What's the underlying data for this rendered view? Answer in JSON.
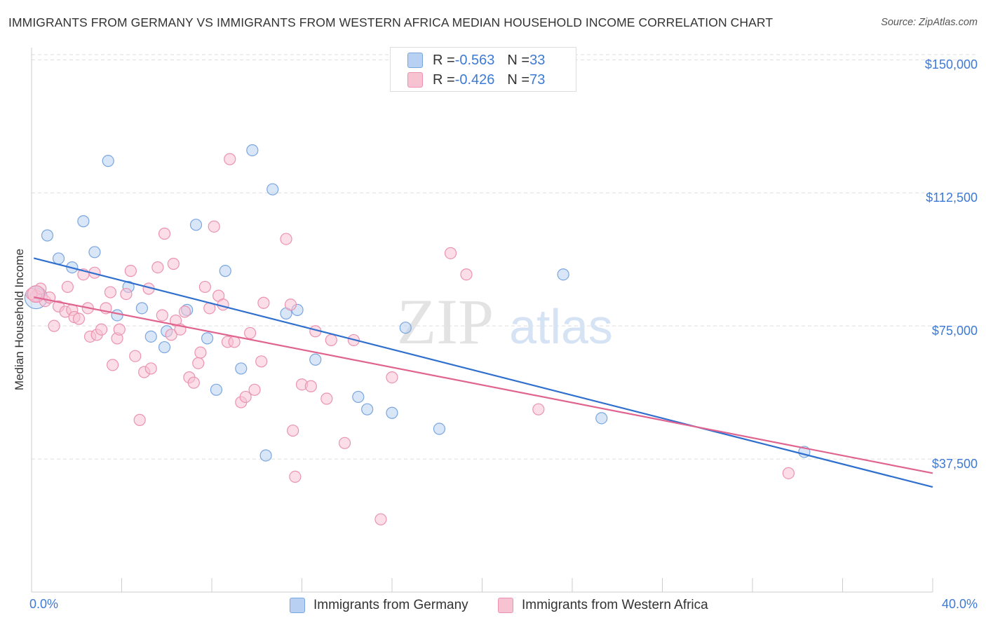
{
  "title": "IMMIGRANTS FROM GERMANY VS IMMIGRANTS FROM WESTERN AFRICA MEDIAN HOUSEHOLD INCOME CORRELATION CHART",
  "source": "Source: ZipAtlas.com",
  "watermark": {
    "zip": "ZIP",
    "atlas": "atlas"
  },
  "legend_stats": [
    {
      "r_label": "R = ",
      "r_value": "-0.563",
      "n_label": "N = ",
      "n_value": "33"
    },
    {
      "r_label": "R = ",
      "r_value": "-0.426",
      "n_label": "N = ",
      "n_value": "73"
    }
  ],
  "colors": {
    "germany_fill": "#b8d1f2",
    "germany_stroke": "#7aa6e0",
    "germany_line": "#2f6fce",
    "wafrica_fill": "#f7c3d3",
    "wafrica_stroke": "#eb93b0",
    "wafrica_line": "#e0648f",
    "tick_label": "#3d7ad6",
    "grid": "#dddddd"
  },
  "chart_data": {
    "type": "scatter",
    "title": "IMMIGRANTS FROM GERMANY VS IMMIGRANTS FROM WESTERN AFRICA MEDIAN HOUSEHOLD INCOME CORRELATION CHART",
    "xlabel": "",
    "ylabel": "Median Household Income",
    "xlim": [
      0,
      40
    ],
    "ylim": [
      0,
      155000
    ],
    "x_tick_labels": [
      "0.0%",
      "40.0%"
    ],
    "y_ticks": [
      37500,
      75000,
      112500,
      150000
    ],
    "y_tick_labels": [
      "$37,500",
      "$75,000",
      "$112,500",
      "$150,000"
    ],
    "grid": true,
    "legend_position": "bottom",
    "series": [
      {
        "name": "Immigrants from Germany",
        "r": -0.563,
        "n": 33,
        "trend": [
          [
            0.1,
            94100
          ],
          [
            40,
            29600
          ]
        ],
        "points": [
          [
            0.3,
            84000
          ],
          [
            0.7,
            100500
          ],
          [
            1.2,
            94000
          ],
          [
            1.8,
            91500
          ],
          [
            2.3,
            104500
          ],
          [
            2.8,
            95800
          ],
          [
            3.4,
            121500
          ],
          [
            3.8,
            78000
          ],
          [
            4.3,
            86000
          ],
          [
            4.9,
            80000
          ],
          [
            5.3,
            72000
          ],
          [
            5.9,
            69000
          ],
          [
            6.0,
            73500
          ],
          [
            6.9,
            79500
          ],
          [
            7.3,
            103500
          ],
          [
            7.8,
            71500
          ],
          [
            8.2,
            57000
          ],
          [
            8.6,
            90500
          ],
          [
            9.3,
            63000
          ],
          [
            9.8,
            124500
          ],
          [
            10.4,
            38500
          ],
          [
            10.7,
            113500
          ],
          [
            11.3,
            78500
          ],
          [
            11.8,
            79500
          ],
          [
            12.6,
            65500
          ],
          [
            14.5,
            55000
          ],
          [
            14.9,
            51500
          ],
          [
            16.0,
            50500
          ],
          [
            16.6,
            74500
          ],
          [
            18.1,
            46000
          ],
          [
            23.6,
            89500
          ],
          [
            25.3,
            49000
          ],
          [
            34.3,
            39500
          ]
        ]
      },
      {
        "name": "Immigrants from Western Africa",
        "r": -0.426,
        "n": 73,
        "trend": [
          [
            0.1,
            83100
          ],
          [
            40,
            33500
          ]
        ],
        "points": [
          [
            0.2,
            83500
          ],
          [
            0.4,
            85500
          ],
          [
            0.6,
            82000
          ],
          [
            0.8,
            83000
          ],
          [
            1.0,
            75000
          ],
          [
            1.2,
            80500
          ],
          [
            1.5,
            79000
          ],
          [
            1.6,
            86000
          ],
          [
            1.8,
            79500
          ],
          [
            1.9,
            77500
          ],
          [
            2.1,
            77000
          ],
          [
            2.3,
            89500
          ],
          [
            2.5,
            80000
          ],
          [
            2.6,
            72000
          ],
          [
            2.8,
            90000
          ],
          [
            2.9,
            72500
          ],
          [
            3.1,
            74000
          ],
          [
            3.3,
            80000
          ],
          [
            3.5,
            84500
          ],
          [
            3.6,
            64000
          ],
          [
            3.8,
            71500
          ],
          [
            3.9,
            74000
          ],
          [
            4.2,
            84000
          ],
          [
            4.4,
            90500
          ],
          [
            4.6,
            66500
          ],
          [
            4.8,
            48500
          ],
          [
            5.0,
            62000
          ],
          [
            5.2,
            85500
          ],
          [
            5.3,
            63000
          ],
          [
            5.6,
            91500
          ],
          [
            5.8,
            78000
          ],
          [
            5.9,
            101000
          ],
          [
            6.2,
            72500
          ],
          [
            6.3,
            92500
          ],
          [
            6.4,
            76500
          ],
          [
            6.6,
            74000
          ],
          [
            6.8,
            79000
          ],
          [
            7.0,
            60500
          ],
          [
            7.2,
            59000
          ],
          [
            7.4,
            64500
          ],
          [
            7.5,
            67500
          ],
          [
            7.7,
            86000
          ],
          [
            7.9,
            80000
          ],
          [
            8.1,
            103000
          ],
          [
            8.3,
            83500
          ],
          [
            8.5,
            81000
          ],
          [
            8.7,
            70500
          ],
          [
            8.8,
            122000
          ],
          [
            9.0,
            70500
          ],
          [
            9.3,
            53500
          ],
          [
            9.5,
            55000
          ],
          [
            9.7,
            73000
          ],
          [
            9.9,
            57000
          ],
          [
            10.2,
            65000
          ],
          [
            10.3,
            81500
          ],
          [
            11.3,
            99500
          ],
          [
            11.6,
            45500
          ],
          [
            11.5,
            81000
          ],
          [
            11.7,
            32500
          ],
          [
            12.0,
            58500
          ],
          [
            12.4,
            58000
          ],
          [
            12.6,
            73500
          ],
          [
            13.1,
            54500
          ],
          [
            13.3,
            71000
          ],
          [
            13.9,
            42000
          ],
          [
            14.3,
            71000
          ],
          [
            15.5,
            20500
          ],
          [
            16.0,
            60500
          ],
          [
            18.6,
            95500
          ],
          [
            19.3,
            89500
          ],
          [
            22.5,
            51500
          ],
          [
            33.6,
            33500
          ],
          [
            0.0,
            84000
          ]
        ]
      }
    ]
  },
  "bottom_legend": [
    "Immigrants from Germany",
    "Immigrants from Western Africa"
  ]
}
